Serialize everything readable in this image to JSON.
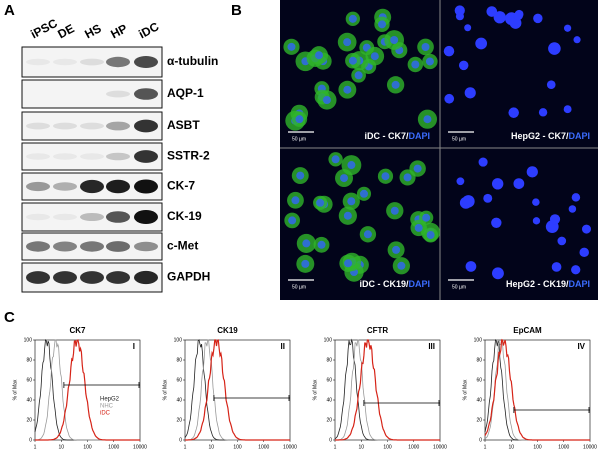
{
  "panel_a": {
    "label": "A",
    "lanes": [
      "iPSC",
      "DE",
      "HS",
      "HP",
      "iDC"
    ],
    "proteins": [
      "α-tubulin",
      "AQP-1",
      "ASBT",
      "SSTR-2",
      "CK-7",
      "CK-19",
      "c-Met",
      "GAPDH"
    ]
  },
  "panel_b": {
    "label": "B",
    "images": [
      {
        "marker": "iDC - CK7/",
        "stain": "DAPI",
        "scale_bar": "50 µm"
      },
      {
        "marker": "HepG2 - CK7/",
        "stain": "DAPI",
        "scale_bar": "50 µm"
      },
      {
        "marker": "iDC - CK19/",
        "stain": "DAPI",
        "scale_bar": "50 µm"
      },
      {
        "marker": "HepG2 - CK19/",
        "stain": "DAPI",
        "scale_bar": "50 µm"
      }
    ]
  },
  "panel_c": {
    "label": "C",
    "y_axis_label": "% of Max",
    "yticks": [
      0,
      20,
      40,
      60,
      80,
      100
    ],
    "xticks": [
      1,
      10,
      100,
      1000,
      10000
    ],
    "legend": [
      {
        "name": "HepG2",
        "color": "#222222"
      },
      {
        "name": "NHC",
        "color": "#9a9a9a"
      },
      {
        "name": "iDC",
        "color": "#d62418"
      }
    ],
    "plots": [
      {
        "title": "CK7",
        "numeral": "I"
      },
      {
        "title": "CK19",
        "numeral": "II"
      },
      {
        "title": "CFTR",
        "numeral": "III"
      },
      {
        "title": "EpCAM",
        "numeral": "IV"
      }
    ]
  }
}
